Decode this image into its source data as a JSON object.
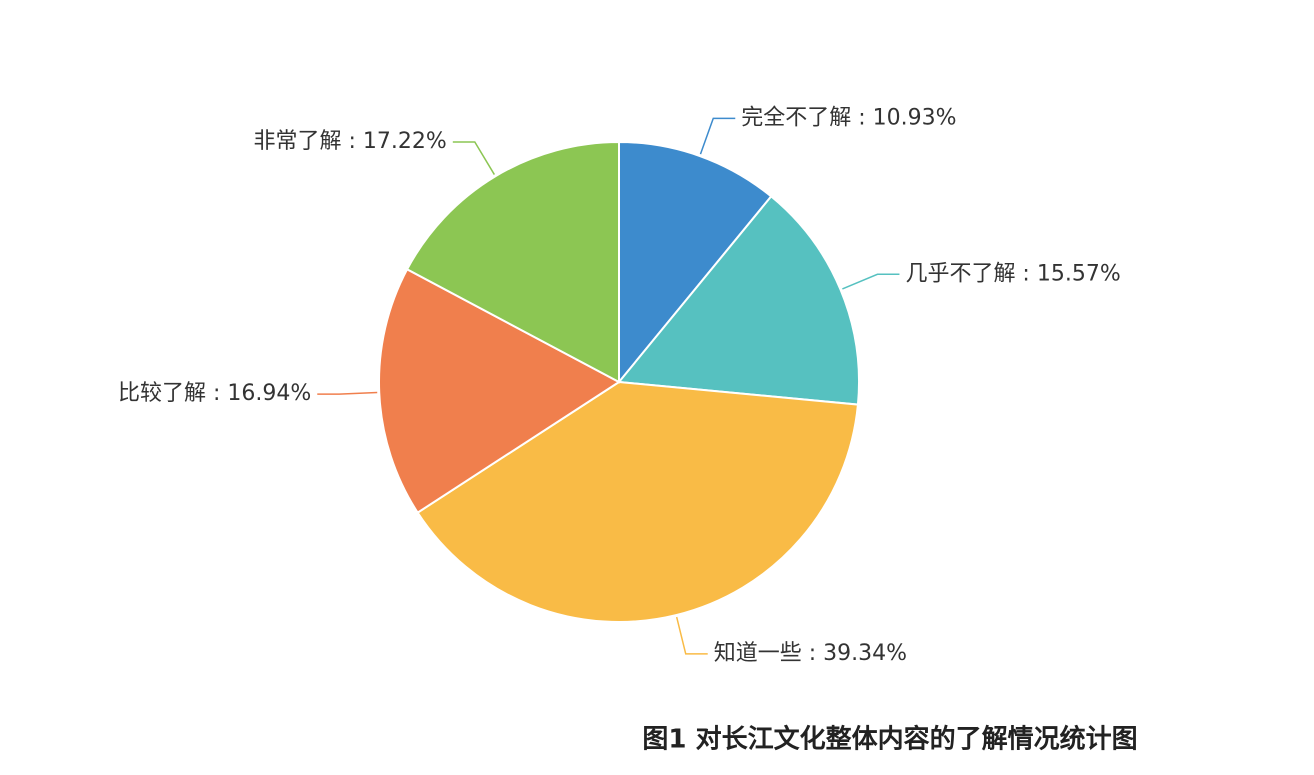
{
  "chart_data": {
    "type": "pie",
    "title": "图1  对长江文化整体内容的了解情况统计图",
    "values": [
      10.93,
      15.57,
      39.34,
      16.94,
      17.22
    ],
    "value_labels": [
      "完全不了解 : 10.93%",
      "几乎不了解 : 15.57%",
      "知道一些 : 39.34%",
      "比较了解 : 16.94%",
      "非常了解 : 17.22%"
    ],
    "colors": [
      "#3d8bcd",
      "#56c1c0",
      "#f9bb46",
      "#f07f4d",
      "#8cc653"
    ]
  }
}
